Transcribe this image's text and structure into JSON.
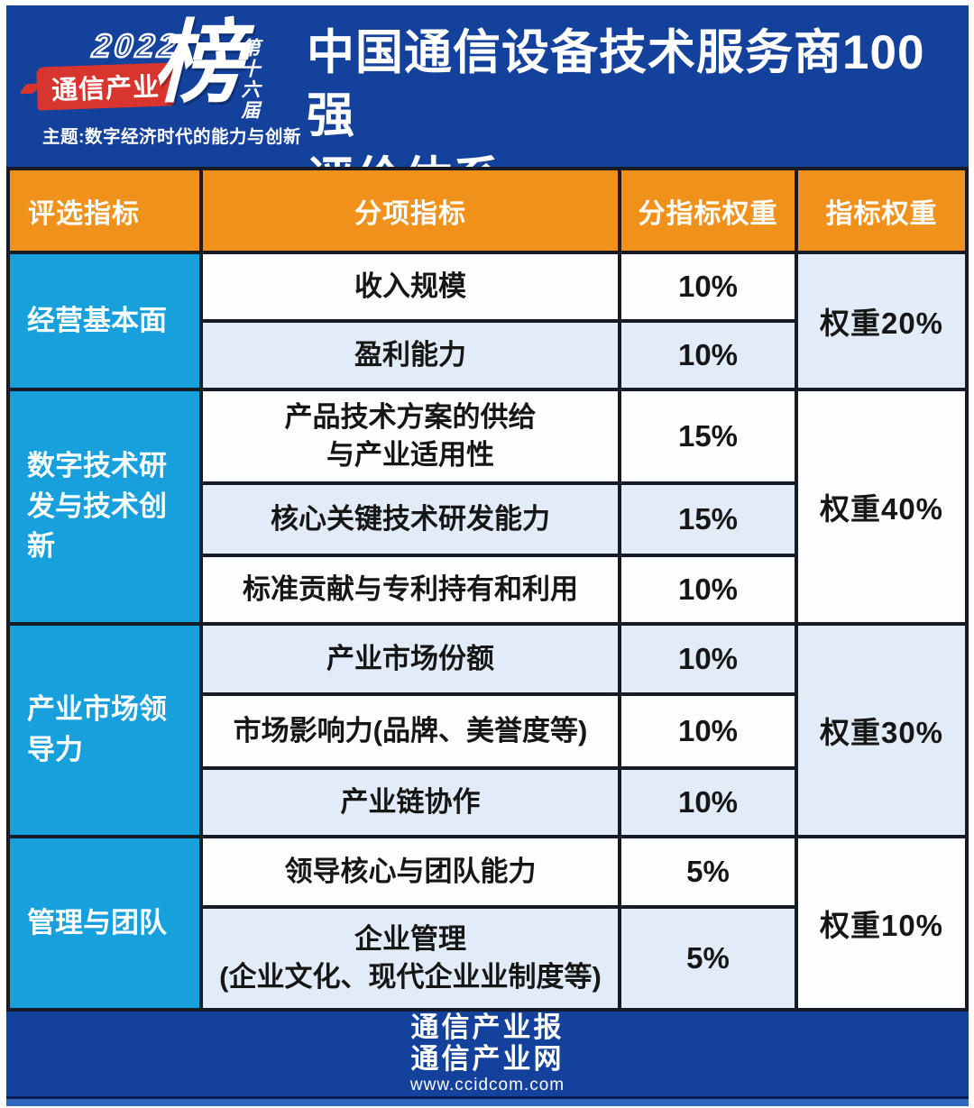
{
  "brand": {
    "year": "2022",
    "banner": "通信产业",
    "big_char": "榜",
    "edition": "第十六届",
    "theme": "主题:数字经济时代的能力与创新"
  },
  "title": {
    "line1": "中国通信设备技术服务商100强",
    "line2": "评价体系"
  },
  "table": {
    "headers": [
      "评选指标",
      "分项指标",
      "分指标权重",
      "指标权重"
    ],
    "groups": [
      {
        "name": "经营基本面",
        "weight": "权重20%",
        "rows": [
          {
            "label": "收入规模",
            "value": "10%"
          },
          {
            "label": "盈利能力",
            "value": "10%"
          }
        ]
      },
      {
        "name": "数字技术研发与技术创新",
        "weight": "权重40%",
        "rows": [
          {
            "label": "产品技术方案的供给\n与产业适用性",
            "value": "15%"
          },
          {
            "label": "核心关键技术研发能力",
            "value": "15%"
          },
          {
            "label": "标准贡献与专利持有和利用",
            "value": "10%"
          }
        ]
      },
      {
        "name": "产业市场领导力",
        "weight": "权重30%",
        "rows": [
          {
            "label": "产业市场份额",
            "value": "10%"
          },
          {
            "label": "市场影响力(品牌、美誉度等)",
            "value": "10%"
          },
          {
            "label": "产业链协作",
            "value": "10%"
          }
        ]
      },
      {
        "name": "管理与团队",
        "weight": "权重10%",
        "rows": [
          {
            "label": "领导核心与团队能力",
            "value": "5%"
          },
          {
            "label": "企业管理\n(企业文化、现代企业业制度等)",
            "value": "5%"
          }
        ]
      }
    ]
  },
  "footer": {
    "line1": "通信产业报",
    "line2": "通信产业网",
    "url": "www.ccidcom.com"
  },
  "colors": {
    "deep-blue": "#14419B",
    "orange": "#F0911B",
    "group-blue": "#18A0DC",
    "row-white": "#FDFDFE",
    "row-blue": "#E2ECF8",
    "border": "#161B26",
    "red": "#D8352E",
    "strip-blue": "#2F66BE"
  }
}
